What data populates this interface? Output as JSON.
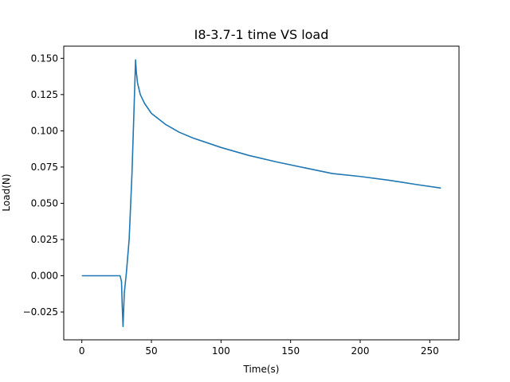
{
  "chart_data": {
    "type": "line",
    "title": "I8-3.7-1 time VS load",
    "xlabel": "Time(s)",
    "ylabel": "Load(N)",
    "xlim": [
      -13,
      271
    ],
    "ylim": [
      -0.0442,
      0.1584
    ],
    "xticks": [
      0,
      50,
      100,
      150,
      200,
      250
    ],
    "yticks": [
      -0.025,
      0.0,
      0.025,
      0.05,
      0.075,
      0.1,
      0.125,
      0.15
    ],
    "xtick_labels": [
      "0",
      "50",
      "100",
      "150",
      "200",
      "250"
    ],
    "ytick_labels": [
      "−0.025",
      "0.000",
      "0.025",
      "0.050",
      "0.075",
      "0.100",
      "0.125",
      "0.150"
    ],
    "grid": false,
    "legend": "none",
    "series": [
      {
        "color": "#1f77b4",
        "x": [
          0,
          5,
          10,
          15,
          20,
          25,
          27.5,
          28.5,
          29.0,
          29.6,
          30.5,
          32,
          34,
          36,
          37.5,
          38.6,
          39.2,
          40,
          42,
          45,
          50,
          60,
          70,
          80,
          100,
          120,
          140,
          160,
          180,
          200,
          220,
          240,
          258
        ],
        "y": [
          0,
          0,
          0,
          0,
          0,
          0,
          0,
          -0.004,
          -0.02,
          -0.035,
          -0.012,
          0.002,
          0.025,
          0.07,
          0.115,
          0.149,
          0.14,
          0.133,
          0.125,
          0.119,
          0.112,
          0.1045,
          0.099,
          0.095,
          0.0885,
          0.083,
          0.0785,
          0.0745,
          0.0705,
          0.0685,
          0.066,
          0.063,
          0.0605
        ]
      }
    ]
  }
}
